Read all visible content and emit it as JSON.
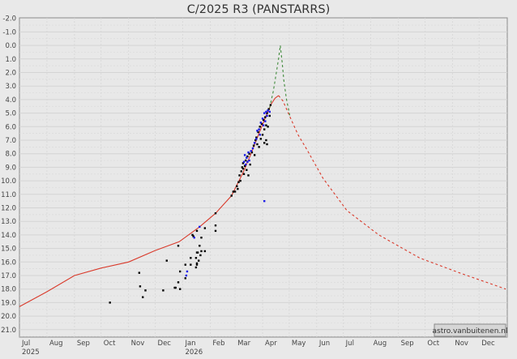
{
  "chart_data": {
    "type": "scatter",
    "title": "C/2025 R3 (PANSTARRS)",
    "xlabel": "",
    "ylabel": "",
    "xlim": [
      "2025-07-01",
      "2026-12-31"
    ],
    "ylim": [
      21.5,
      -2.0
    ],
    "y_inverted": true,
    "grid": true,
    "y_ticks": [
      "-2.0",
      "-1.0",
      "0.0",
      "1.0",
      "2.0",
      "3.0",
      "4.0",
      "5.0",
      "6.0",
      "7.0",
      "8.0",
      "9.0",
      "10.0",
      "11.0",
      "12.0",
      "13.0",
      "14.0",
      "15.0",
      "16.0",
      "17.0",
      "18.0",
      "19.0",
      "20.0",
      "21.0"
    ],
    "x_ticks": [
      {
        "date": "2025-07-01",
        "label": "Jul",
        "year": "2025"
      },
      {
        "date": "2025-08-01",
        "label": "Aug"
      },
      {
        "date": "2025-09-01",
        "label": "Sep"
      },
      {
        "date": "2025-10-01",
        "label": "Oct"
      },
      {
        "date": "2025-11-01",
        "label": "Nov"
      },
      {
        "date": "2025-12-01",
        "label": "Dec"
      },
      {
        "date": "2026-01-01",
        "label": "Jan",
        "year": "2026"
      },
      {
        "date": "2026-02-01",
        "label": "Feb"
      },
      {
        "date": "2026-03-01",
        "label": "Mar"
      },
      {
        "date": "2026-04-01",
        "label": "Apr"
      },
      {
        "date": "2026-05-01",
        "label": "May"
      },
      {
        "date": "2026-06-01",
        "label": "Jun"
      },
      {
        "date": "2026-07-01",
        "label": "Jul"
      },
      {
        "date": "2026-08-01",
        "label": "Aug"
      },
      {
        "date": "2026-09-01",
        "label": "Sep"
      },
      {
        "date": "2026-10-01",
        "label": "Oct"
      },
      {
        "date": "2026-11-01",
        "label": "Nov"
      },
      {
        "date": "2026-12-01",
        "label": "Dec"
      }
    ],
    "watermark": "astro.vanbuitenen.nl",
    "colors": {
      "model": "#d93a2b",
      "model_alt": "#3f8a3a",
      "obs_black": "#000000",
      "obs_blue": "#1a1ae6",
      "plot_bg": "#e8e8e8",
      "page_bg": "#e9e9e9"
    },
    "curves": [
      {
        "style": "solid",
        "color": "#d93a2b",
        "points": [
          [
            "2025-07-01",
            19.3
          ],
          [
            "2025-08-01",
            18.2
          ],
          [
            "2025-09-01",
            17.0
          ],
          [
            "2025-10-01",
            16.45
          ],
          [
            "2025-11-01",
            16.0
          ],
          [
            "2025-12-01",
            15.15
          ],
          [
            "2025-12-28",
            14.5
          ],
          [
            "2026-01-20",
            13.4
          ],
          [
            "2026-02-07",
            12.4
          ],
          [
            "2026-02-25",
            11.1
          ],
          [
            "2026-03-10",
            9.4
          ],
          [
            "2026-03-19",
            8.0
          ],
          [
            "2026-03-28",
            6.5
          ],
          [
            "2026-04-05",
            5.2
          ],
          [
            "2026-04-11",
            4.3
          ],
          [
            "2026-04-15",
            3.9
          ],
          [
            "2026-04-19",
            3.7
          ]
        ]
      },
      {
        "style": "dashed",
        "color": "#d93a2b",
        "points": [
          [
            "2026-04-19",
            3.7
          ],
          [
            "2026-04-24",
            4.1
          ],
          [
            "2026-05-02",
            5.3
          ],
          [
            "2026-05-11",
            6.6
          ],
          [
            "2026-05-21",
            7.7
          ],
          [
            "2026-06-08",
            9.8
          ],
          [
            "2026-07-05",
            12.2
          ],
          [
            "2026-08-10",
            14.0
          ],
          [
            "2026-09-25",
            15.7
          ],
          [
            "2026-11-09",
            16.8
          ],
          [
            "2026-12-31",
            18.0
          ]
        ]
      },
      {
        "style": "dashed",
        "color": "#3f8a3a",
        "points": [
          [
            "2026-04-09",
            4.6
          ],
          [
            "2026-04-13",
            3.4
          ],
          [
            "2026-04-16",
            2.2
          ],
          [
            "2026-04-19",
            1.0
          ],
          [
            "2026-04-21",
            0.0
          ],
          [
            "2026-04-23",
            1.2
          ],
          [
            "2026-04-25",
            2.6
          ],
          [
            "2026-04-28",
            4.0
          ],
          [
            "2026-05-02",
            5.3
          ]
        ]
      }
    ],
    "series": [
      {
        "color": "#000000",
        "points": [
          [
            "2025-10-11",
            19.0
          ],
          [
            "2025-11-13",
            16.8
          ],
          [
            "2025-11-14",
            17.8
          ],
          [
            "2025-11-20",
            18.1
          ],
          [
            "2025-11-17",
            18.6
          ],
          [
            "2025-12-10",
            18.1
          ],
          [
            "2025-12-14",
            15.9
          ],
          [
            "2025-12-23",
            17.9
          ],
          [
            "2025-12-24",
            17.9
          ],
          [
            "2025-12-27",
            14.8
          ],
          [
            "2025-12-27",
            17.5
          ],
          [
            "2025-12-29",
            18.0
          ],
          [
            "2025-12-29",
            16.7
          ],
          [
            "2026-01-04",
            16.2
          ],
          [
            "2026-01-04",
            17.2
          ],
          [
            "2026-01-10",
            16.2
          ],
          [
            "2026-01-10",
            15.7
          ],
          [
            "2026-01-12",
            14.0
          ],
          [
            "2026-01-13",
            14.1
          ],
          [
            "2026-01-16",
            15.7
          ],
          [
            "2026-01-16",
            16.4
          ],
          [
            "2026-01-17",
            16.1
          ],
          [
            "2026-01-17",
            16.2
          ],
          [
            "2026-01-17",
            15.3
          ],
          [
            "2026-01-18",
            15.3
          ],
          [
            "2026-01-19",
            15.9
          ],
          [
            "2026-01-20",
            14.8
          ],
          [
            "2026-01-17",
            13.7
          ],
          [
            "2026-01-21",
            15.5
          ],
          [
            "2026-01-22",
            14.2
          ],
          [
            "2026-01-22",
            15.2
          ],
          [
            "2026-01-26",
            13.5
          ],
          [
            "2026-01-26",
            15.2
          ],
          [
            "2026-02-07",
            12.4
          ],
          [
            "2026-02-07",
            13.3
          ],
          [
            "2026-02-07",
            13.7
          ],
          [
            "2026-02-25",
            11.1
          ],
          [
            "2026-02-27",
            10.8
          ],
          [
            "2026-03-01",
            10.8
          ],
          [
            "2026-03-03",
            10.4
          ],
          [
            "2026-03-04",
            10.6
          ],
          [
            "2026-03-05",
            10.1
          ],
          [
            "2026-03-06",
            9.6
          ],
          [
            "2026-03-07",
            10.0
          ],
          [
            "2026-03-08",
            9.3
          ],
          [
            "2026-03-09",
            9.0
          ],
          [
            "2026-03-10",
            9.1
          ],
          [
            "2026-03-10",
            8.7
          ],
          [
            "2026-03-11",
            9.5
          ],
          [
            "2026-03-12",
            8.9
          ],
          [
            "2026-03-13",
            8.5
          ],
          [
            "2026-03-14",
            9.2
          ],
          [
            "2026-03-15",
            8.2
          ],
          [
            "2026-03-16",
            9.6
          ],
          [
            "2026-03-17",
            8.0
          ],
          [
            "2026-03-18",
            8.8
          ],
          [
            "2026-03-20",
            7.9
          ],
          [
            "2026-03-22",
            7.4
          ],
          [
            "2026-03-23",
            8.1
          ],
          [
            "2026-03-24",
            7.0
          ],
          [
            "2026-03-25",
            6.8
          ],
          [
            "2026-03-26",
            7.3
          ],
          [
            "2026-03-27",
            6.4
          ],
          [
            "2026-03-28",
            7.5
          ],
          [
            "2026-03-29",
            6.0
          ],
          [
            "2026-03-30",
            6.9
          ],
          [
            "2026-03-31",
            5.8
          ],
          [
            "2026-04-01",
            6.6
          ],
          [
            "2026-04-02",
            5.5
          ],
          [
            "2026-04-03",
            7.2
          ],
          [
            "2026-04-03",
            6.2
          ],
          [
            "2026-04-04",
            5.3
          ],
          [
            "2026-04-05",
            5.9
          ],
          [
            "2026-04-05",
            7.0
          ],
          [
            "2026-04-06",
            7.3
          ],
          [
            "2026-04-06",
            5.0
          ],
          [
            "2026-04-08",
            4.7
          ],
          [
            "2026-04-09",
            5.2
          ],
          [
            "2026-04-10",
            4.4
          ],
          [
            "2026-04-07",
            6.0
          ]
        ]
      },
      {
        "color": "#1a1ae6",
        "points": [
          [
            "2026-01-05",
            17.0
          ],
          [
            "2026-01-06",
            16.7
          ],
          [
            "2026-01-14",
            14.2
          ],
          [
            "2026-01-20",
            13.4
          ],
          [
            "2026-03-11",
            8.6
          ],
          [
            "2026-03-12",
            8.1
          ],
          [
            "2026-03-13",
            8.8
          ],
          [
            "2026-03-14",
            8.3
          ],
          [
            "2026-03-15",
            8.6
          ],
          [
            "2026-03-16",
            7.9
          ],
          [
            "2026-03-17",
            8.5
          ],
          [
            "2026-03-19",
            7.8
          ],
          [
            "2026-03-21",
            7.6
          ],
          [
            "2026-03-23",
            7.2
          ],
          [
            "2026-03-25",
            6.9
          ],
          [
            "2026-03-26",
            6.3
          ],
          [
            "2026-03-28",
            6.2
          ],
          [
            "2026-03-29",
            6.6
          ],
          [
            "2026-03-30",
            5.7
          ],
          [
            "2026-04-01",
            5.4
          ],
          [
            "2026-04-02",
            5.9
          ],
          [
            "2026-04-03",
            5.0
          ],
          [
            "2026-04-04",
            5.6
          ],
          [
            "2026-04-05",
            4.9
          ],
          [
            "2026-04-06",
            5.2
          ],
          [
            "2026-04-07",
            4.8
          ],
          [
            "2026-04-09",
            4.9
          ],
          [
            "2026-04-03",
            11.5
          ]
        ]
      }
    ]
  }
}
